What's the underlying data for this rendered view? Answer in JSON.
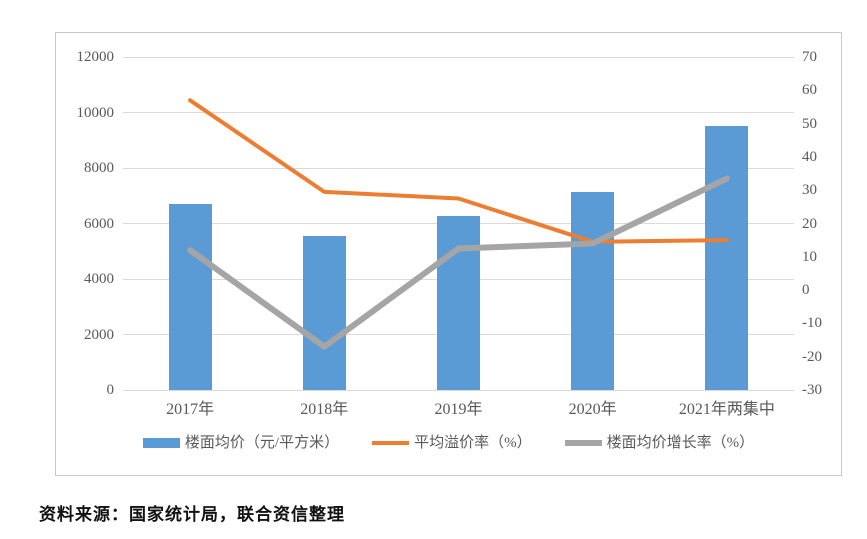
{
  "page": {
    "source_note": "资料来源：国家统计局，联合资信整理"
  },
  "chart_data": {
    "type": "bar",
    "subtype": "combo-bar-line-dual-axis",
    "categories": [
      "2017年",
      "2018年",
      "2019年",
      "2020年",
      "2021年两集中"
    ],
    "series": [
      {
        "name": "楼面均价（元/平方米）",
        "kind": "bar",
        "axis": "left",
        "color": "#5b9bd5",
        "values": [
          6700,
          5560,
          6280,
          7150,
          9520
        ]
      },
      {
        "name": "平均溢价率（%）",
        "kind": "line",
        "axis": "right",
        "color": "#ed7d31",
        "values": [
          57,
          29.5,
          27.5,
          14.5,
          15
        ]
      },
      {
        "name": "楼面均价增长率（%）",
        "kind": "line",
        "axis": "right",
        "color": "#a5a5a5",
        "values": [
          12,
          -17,
          12.5,
          14,
          33.5
        ]
      }
    ],
    "left_axis": {
      "min": 0,
      "max": 12000,
      "step": 2000,
      "ticks": [
        "12000",
        "10000",
        "8000",
        "6000",
        "4000",
        "2000",
        "0"
      ]
    },
    "right_axis": {
      "min": -30,
      "max": 70,
      "step": 10,
      "ticks": [
        "70",
        "60",
        "50",
        "40",
        "30",
        "20",
        "10",
        "0",
        "-10",
        "-20",
        "-30"
      ]
    },
    "grid": true,
    "legend_position": "bottom",
    "title": "",
    "xlabel": "",
    "ylabel": ""
  }
}
